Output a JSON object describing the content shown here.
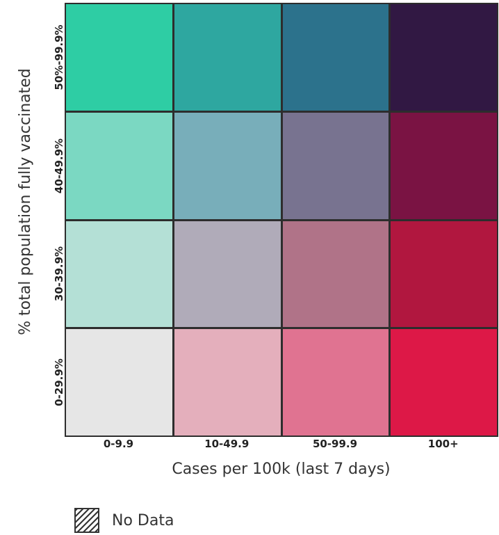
{
  "chart_data": {
    "type": "heatmap",
    "title": "",
    "xlabel": "Cases per 100k (last 7 days)",
    "ylabel": "% total population fully vaccinated",
    "x_categories": [
      "0-9.9",
      "10-49.9",
      "50-99.9",
      "100+"
    ],
    "y_categories": [
      "0-29.9%",
      "30-39.9%",
      "40-49.9%",
      "50%-99.9%"
    ],
    "colors": [
      [
        "#e6e6e6",
        "#e4afbc",
        "#e07391",
        "#dd1847"
      ],
      [
        "#b4e0d6",
        "#b0abb9",
        "#b07388",
        "#b1173f"
      ],
      [
        "#7bd8c2",
        "#78aeba",
        "#787390",
        "#7a1343"
      ],
      [
        "#2ecda4",
        "#2ea7a0",
        "#2c728c",
        "#311843"
      ]
    ],
    "legend": [
      {
        "label": "No Data",
        "pattern": "diagonal-hatch",
        "color": "#333333"
      }
    ],
    "legend_position": "bottom-left"
  }
}
